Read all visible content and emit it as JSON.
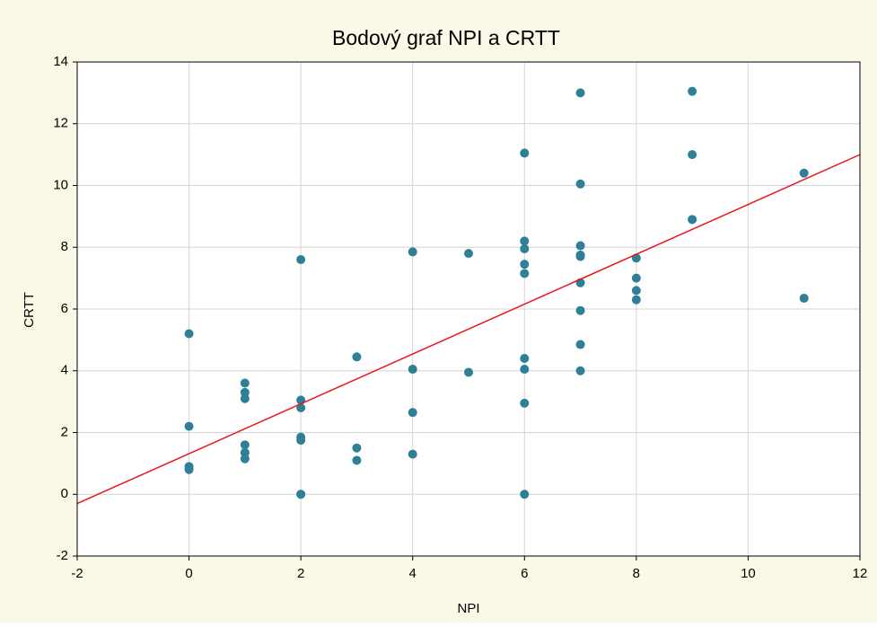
{
  "chart_data": {
    "type": "scatter",
    "title": "Bodový graf NPI a CRTT",
    "x_label": "NPI",
    "y_label": "CRTT",
    "series": [
      {
        "color": "#2f7f96",
        "x": [
          0,
          0,
          0,
          0,
          1,
          1,
          1,
          1,
          1,
          1,
          2,
          2,
          2,
          2,
          2,
          2,
          2,
          3,
          3,
          3,
          4,
          4,
          4,
          4,
          5,
          5,
          6,
          6,
          6,
          6,
          6,
          6,
          6,
          6,
          6,
          7,
          7,
          7,
          7,
          7,
          7,
          7,
          7,
          7,
          8,
          8,
          8,
          8,
          9,
          9,
          9,
          11,
          11
        ],
        "y": [
          5.2,
          2.2,
          0.9,
          0.8,
          3.6,
          3.3,
          3.1,
          1.6,
          1.35,
          1.15,
          7.6,
          3.05,
          2.8,
          1.85,
          1.75,
          0,
          0,
          4.45,
          1.5,
          1.1,
          7.85,
          4.05,
          2.65,
          1.3,
          7.8,
          3.95,
          11.05,
          8.2,
          7.95,
          7.45,
          7.15,
          4.4,
          4.05,
          2.95,
          0,
          13,
          10.05,
          8.05,
          7.75,
          7.7,
          6.85,
          5.95,
          4.85,
          4.0,
          7.65,
          7.0,
          6.6,
          6.3,
          13.05,
          11.0,
          8.9,
          10.4,
          6.35
        ]
      }
    ],
    "fit_line": {
      "color": "#e8161b",
      "x": [
        -2,
        12
      ],
      "y": [
        -0.3,
        11.0
      ]
    },
    "xlim": [
      -2,
      12
    ],
    "xticks": [
      -2,
      0,
      2,
      4,
      6,
      8,
      10,
      12
    ],
    "ylim": [
      -2,
      14
    ],
    "yticks": [
      -2,
      0,
      2,
      4,
      6,
      8,
      10,
      12,
      14
    ],
    "grid": true
  }
}
